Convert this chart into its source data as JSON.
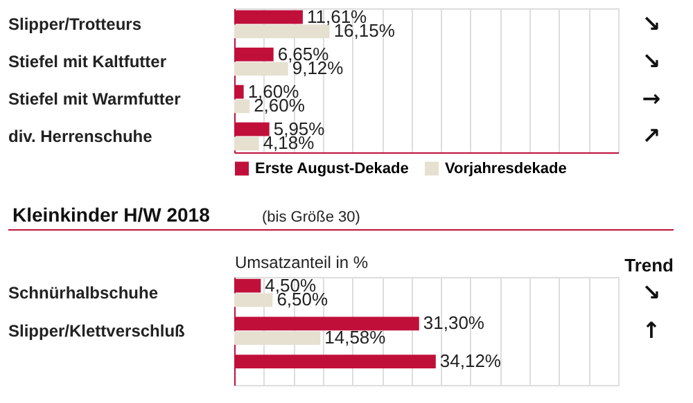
{
  "chart_data": [
    {
      "type": "bar",
      "orientation": "horizontal",
      "categories": [
        "Slipper/Trotteurs",
        "Stiefel mit Kaltfutter",
        "Stiefel mit Warmfutter",
        "div. Herrenschuhe"
      ],
      "series": [
        {
          "name": "Erste August-Dekade",
          "color": "#c0103a",
          "values": [
            11.61,
            6.65,
            1.6,
            5.95
          ],
          "value_labels": [
            "11,61%",
            "6,65%",
            "1,60%",
            "5,95%"
          ]
        },
        {
          "name": "Vorjahresdekade",
          "color": "#e6e0d0",
          "values": [
            16.15,
            9.12,
            2.6,
            4.18
          ],
          "value_labels": [
            "16,15%",
            "9,12%",
            "2,60%",
            "4,18%"
          ]
        }
      ],
      "xlim": [
        0,
        65
      ],
      "grid": "x",
      "tick_labels": "y",
      "legend": "bottom left",
      "annotations": [
        "↘",
        "↘",
        "→",
        "↗"
      ]
    },
    {
      "type": "bar",
      "orientation": "horizontal",
      "title": "Kleinkinder H/W 2018",
      "subtitle": "(bis Größe 30)",
      "xlabel": "Umsatzanteil in %",
      "categories": [
        "Schnürhalbschuhe",
        "Slipper/Klettverschluß",
        null
      ],
      "series": [
        {
          "name": null,
          "color": "#c0103a",
          "values": [
            4.5,
            31.3,
            34.12
          ],
          "value_labels": [
            "4,50%",
            "31,30%",
            "34,12%"
          ]
        },
        {
          "name": null,
          "color": "#e6e0d0",
          "values": [
            6.5,
            14.58,
            null
          ],
          "value_labels": [
            "6,50%",
            "14,58%",
            null
          ]
        }
      ],
      "xlim": [
        0,
        65
      ],
      "grid": "x",
      "tick_labels": "y",
      "legend": false,
      "annotations": [
        "Trend",
        "↘",
        "↑"
      ]
    }
  ]
}
